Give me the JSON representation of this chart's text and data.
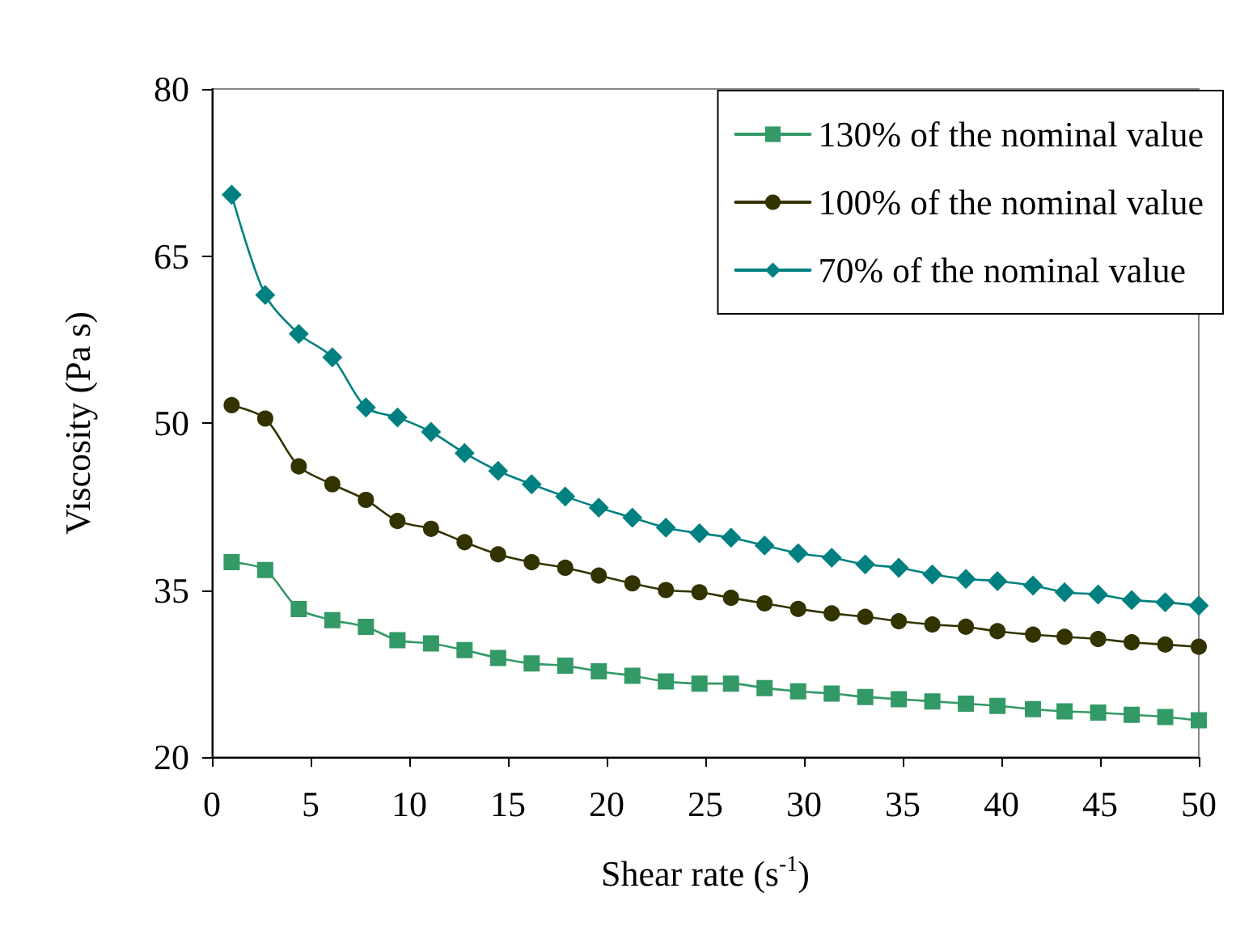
{
  "chart_data": {
    "type": "line",
    "xlabel": "Shear rate (s$^{-1}$)",
    "ylabel": "Viscosity (Pa s)",
    "x": [
      1,
      2.7,
      4.4,
      6.1,
      7.8,
      9.4,
      11.1,
      12.8,
      14.5,
      16.2,
      17.9,
      19.6,
      21.3,
      23.0,
      24.7,
      26.3,
      28.0,
      29.7,
      31.4,
      33.1,
      34.8,
      36.5,
      38.2,
      39.8,
      41.6,
      43.2,
      44.9,
      46.6,
      48.3,
      50
    ],
    "series": [
      {
        "name": "130% of the nominal value",
        "color": "#339966",
        "marker": "square",
        "values": [
          37.5,
          36.8,
          33.3,
          32.3,
          31.7,
          30.5,
          30.2,
          29.6,
          28.9,
          28.4,
          28.2,
          27.7,
          27.3,
          26.8,
          26.6,
          26.6,
          26.2,
          25.9,
          25.7,
          25.4,
          25.2,
          25.0,
          24.8,
          24.6,
          24.3,
          24.1,
          24.0,
          23.8,
          23.6,
          23.3
        ]
      },
      {
        "name": "100% of the nominal value",
        "color": "#333300",
        "marker": "circle",
        "values": [
          51.6,
          50.4,
          46.1,
          44.5,
          43.1,
          41.2,
          40.5,
          39.3,
          38.2,
          37.5,
          37.0,
          36.3,
          35.6,
          35.0,
          34.8,
          34.3,
          33.8,
          33.3,
          32.9,
          32.6,
          32.2,
          31.9,
          31.7,
          31.3,
          31.0,
          30.8,
          30.6,
          30.3,
          30.1,
          29.9
        ]
      },
      {
        "name": "70% of the nominal value",
        "color": "#008080",
        "marker": "diamond",
        "values": [
          70.5,
          61.5,
          58.0,
          55.9,
          51.4,
          50.5,
          49.2,
          47.3,
          45.7,
          44.5,
          43.4,
          42.4,
          41.5,
          40.6,
          40.1,
          39.7,
          39.0,
          38.3,
          37.9,
          37.3,
          37.0,
          36.4,
          36.0,
          35.8,
          35.4,
          34.8,
          34.6,
          34.1,
          33.9,
          33.6
        ]
      }
    ],
    "xlim": [
      0,
      50
    ],
    "xticks": [
      0,
      5,
      10,
      15,
      20,
      25,
      30,
      35,
      40,
      45,
      50
    ],
    "ylim": [
      20,
      80
    ],
    "yticks": [
      20,
      35,
      50,
      65,
      80
    ],
    "grid": false,
    "legend": "top right",
    "line_style": "solid"
  }
}
